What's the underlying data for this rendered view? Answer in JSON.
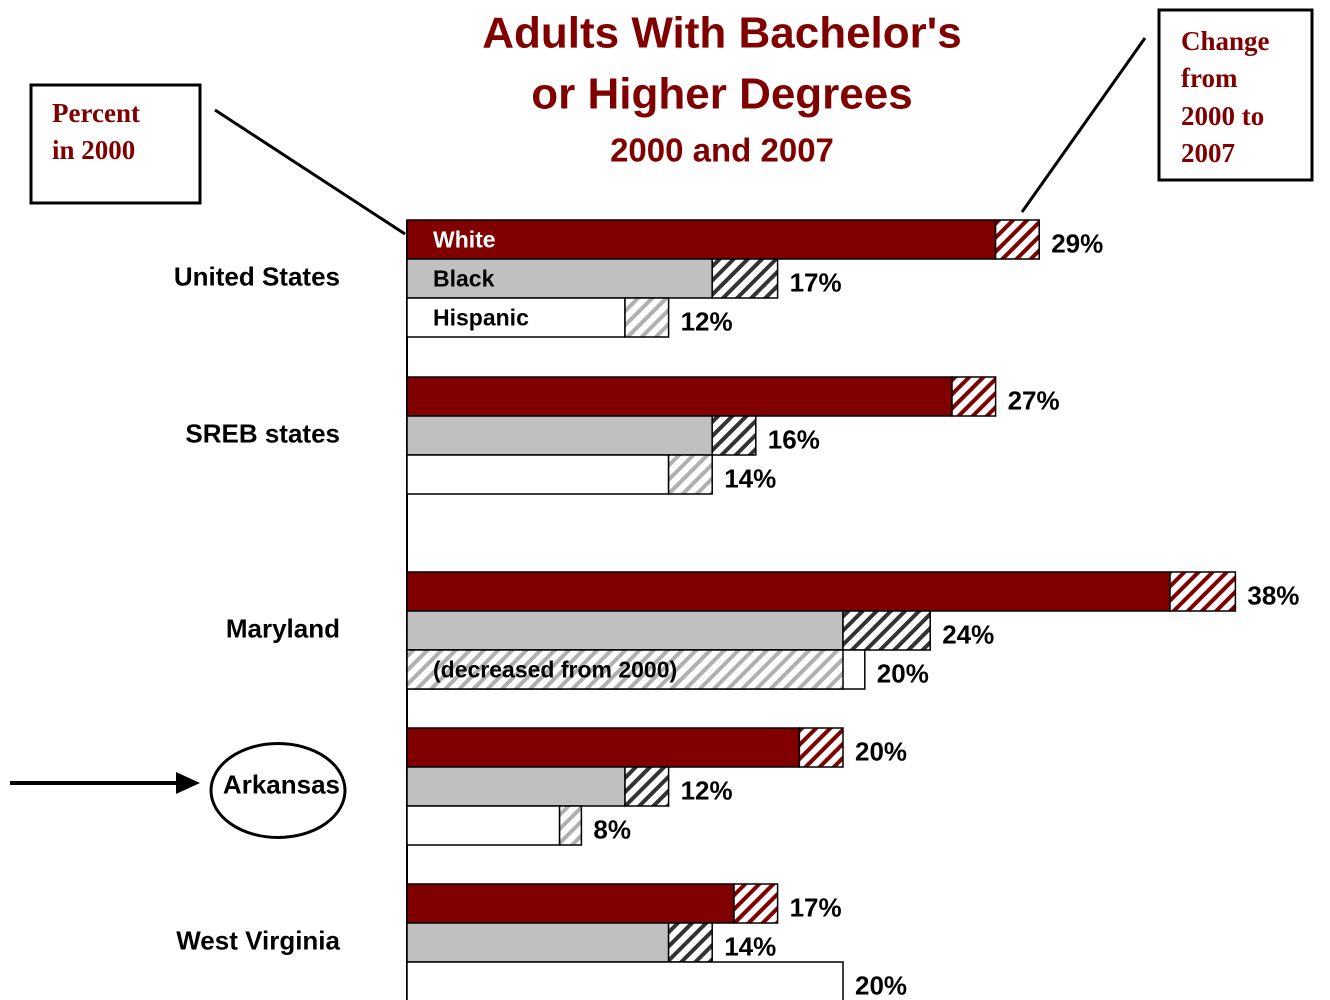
{
  "chart_data": {
    "type": "bar",
    "title": [
      "Adults With Bachelor's",
      "or Higher Degrees"
    ],
    "subtitle": "2000 and 2007",
    "annotations": {
      "percent_box": [
        "Percent",
        "in 2000"
      ],
      "change_box": [
        "Change",
        "from",
        "2000 to",
        "2007"
      ],
      "decreased": "(decreased from 2000)"
    },
    "categories": [
      "United States",
      "SREB states",
      "Maryland",
      "Arkansas",
      "West Virginia"
    ],
    "highlight": "Arkansas",
    "series": [
      {
        "name": "White",
        "color": "#800000",
        "hatch_color": "#800000",
        "values_2000": [
          27,
          25,
          35,
          18,
          15
        ],
        "values": [
          29,
          27,
          38,
          20,
          17
        ],
        "value_labels": [
          "29%",
          "27%",
          "38%",
          "20%",
          "17%"
        ]
      },
      {
        "name": "Black",
        "color": "#c0c0c0",
        "hatch_color": "#333333",
        "values_2000": [
          14,
          14,
          20,
          10,
          12
        ],
        "values": [
          17,
          16,
          24,
          12,
          14
        ],
        "value_labels": [
          "17%",
          "16%",
          "24%",
          "12%",
          "14%"
        ]
      },
      {
        "name": "Hispanic",
        "color": "#ffffff",
        "hatch_color": "#b0b0b0",
        "values_2000": [
          10,
          12,
          21,
          7,
          20
        ],
        "values": [
          12,
          14,
          20,
          8,
          20
        ],
        "value_labels": [
          "12%",
          "14%",
          "20%",
          "8%",
          "20%"
        ]
      }
    ]
  }
}
